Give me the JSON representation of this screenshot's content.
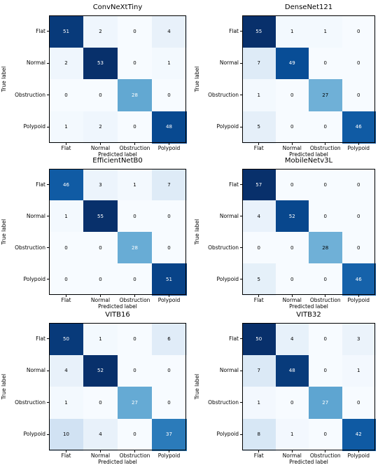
{
  "chart_data": [
    {
      "type": "heatmap",
      "title": "ConvNeXtTiny",
      "xlabel": "Predicted label",
      "ylabel": "True label",
      "classes": [
        "Flat",
        "Normal",
        "Obstruction",
        "Polypoid"
      ],
      "matrix": [
        [
          51,
          2,
          0,
          4
        ],
        [
          2,
          53,
          0,
          1
        ],
        [
          0,
          0,
          28,
          0
        ],
        [
          1,
          2,
          0,
          48
        ]
      ],
      "vmax": 53
    },
    {
      "type": "heatmap",
      "title": "DenseNet121",
      "xlabel": "Predicted label",
      "ylabel": "True label",
      "classes": [
        "Flat",
        "Normal",
        "Obstruction",
        "Polypoid"
      ],
      "matrix": [
        [
          55,
          1,
          1,
          0
        ],
        [
          7,
          49,
          0,
          0
        ],
        [
          1,
          0,
          27,
          0
        ],
        [
          5,
          0,
          0,
          46
        ]
      ],
      "vmax": 55
    },
    {
      "type": "heatmap",
      "title": "EfficientNetB0",
      "xlabel": "Predicted label",
      "ylabel": "True label",
      "classes": [
        "Flat",
        "Normal",
        "Obstruction",
        "Polypoid"
      ],
      "matrix": [
        [
          46,
          3,
          1,
          7
        ],
        [
          1,
          55,
          0,
          0
        ],
        [
          0,
          0,
          28,
          0
        ],
        [
          0,
          0,
          0,
          51
        ]
      ],
      "vmax": 55
    },
    {
      "type": "heatmap",
      "title": "MobileNetv3L",
      "xlabel": "Predicted label",
      "ylabel": "True label",
      "classes": [
        "Flat",
        "Normal",
        "Obstruction",
        "Polypoid"
      ],
      "matrix": [
        [
          57,
          0,
          0,
          0
        ],
        [
          4,
          52,
          0,
          0
        ],
        [
          0,
          0,
          28,
          0
        ],
        [
          5,
          0,
          0,
          46
        ]
      ],
      "vmax": 57
    },
    {
      "type": "heatmap",
      "title": "VITB16",
      "xlabel": "Predicted label",
      "ylabel": "True label",
      "classes": [
        "Flat",
        "Normal",
        "Obstruction",
        "Polypoid"
      ],
      "matrix": [
        [
          50,
          1,
          0,
          6
        ],
        [
          4,
          52,
          0,
          0
        ],
        [
          1,
          0,
          27,
          0
        ],
        [
          10,
          4,
          0,
          37
        ]
      ],
      "vmax": 52
    },
    {
      "type": "heatmap",
      "title": "VITB32",
      "xlabel": "Predicted label",
      "ylabel": "True label",
      "classes": [
        "Flat",
        "Normal",
        "Obstruction",
        "Polypoid"
      ],
      "matrix": [
        [
          50,
          4,
          0,
          3
        ],
        [
          7,
          48,
          0,
          1
        ],
        [
          1,
          0,
          27,
          0
        ],
        [
          8,
          1,
          0,
          42
        ]
      ],
      "vmax": 50
    }
  ]
}
